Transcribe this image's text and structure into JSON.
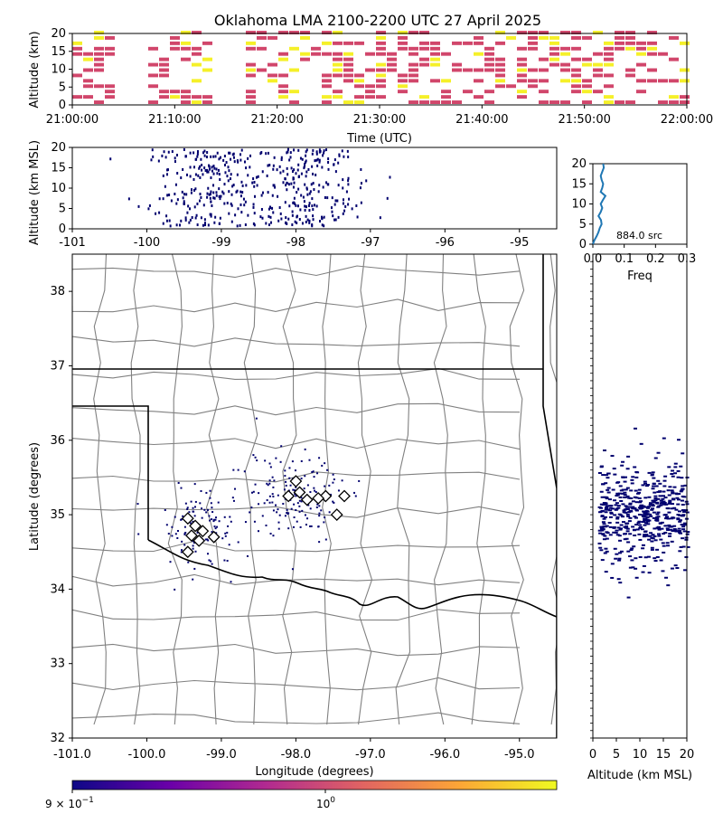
{
  "title": "Oklahoma LMA 2100-2200 UTC 27 April 2025",
  "colors": {
    "magenta": "#d1466b",
    "yellow": "#f5f029",
    "navy": "#00006e",
    "line": "#1f77b4",
    "county": "#808080",
    "border": "#000000",
    "colorbar_stops": [
      "#0d0887",
      "#6a00a8",
      "#b12a90",
      "#e16462",
      "#fca636",
      "#f0f921"
    ]
  },
  "chart_data": [
    {
      "id": "time_height",
      "type": "heatmap",
      "ylabel": "Altitude (km)",
      "xlabel": "Time (UTC)",
      "ylim": [
        0,
        20
      ],
      "yticks": [
        "0",
        "5",
        "10",
        "15",
        "20"
      ],
      "xticks": [
        "21:00:00",
        "21:10:00",
        "21:20:00",
        "21:30:00",
        "21:40:00",
        "21:50:00",
        "22:00:00"
      ],
      "xlim_minutes": [
        0,
        60
      ],
      "active_intervals_minutes": [
        [
          0,
          4
        ],
        [
          7,
          13
        ],
        [
          16,
          60
        ]
      ]
    },
    {
      "id": "lon_alt",
      "type": "scatter",
      "ylabel": "Altitude (km MSL)",
      "yticks": [
        "0",
        "5",
        "10",
        "15",
        "20"
      ],
      "xticks": [
        "-101",
        "-100",
        "-99",
        "-98",
        "-97",
        "-96",
        "-95"
      ],
      "xlim": [
        -101,
        -94.5
      ],
      "ylim": [
        0,
        20
      ],
      "clusters": [
        {
          "lon": -99.2,
          "lon_spread": 0.35,
          "count": 220
        },
        {
          "lon": -97.9,
          "lon_spread": 0.4,
          "count": 240
        }
      ],
      "outliers": [
        [
          -99.75,
          3.5
        ],
        [
          -100.5,
          17.5
        ],
        [
          -99.85,
          17
        ],
        [
          -97.2,
          6
        ],
        [
          -96.75,
          13
        ]
      ]
    },
    {
      "id": "alt_histogram",
      "type": "line",
      "xlabel": "Freq",
      "xticks": [
        "0.0",
        "0.1",
        "0.2",
        "0.3"
      ],
      "yticks": [
        "0",
        "5",
        "10",
        "15",
        "20"
      ],
      "xlim": [
        0,
        0.3
      ],
      "ylim": [
        0,
        20
      ],
      "annotation": "884.0 src",
      "points": [
        [
          0.0,
          0
        ],
        [
          0.005,
          1
        ],
        [
          0.012,
          2
        ],
        [
          0.018,
          3
        ],
        [
          0.022,
          4
        ],
        [
          0.028,
          5
        ],
        [
          0.026,
          6
        ],
        [
          0.018,
          7
        ],
        [
          0.025,
          8
        ],
        [
          0.03,
          9
        ],
        [
          0.025,
          10
        ],
        [
          0.032,
          11
        ],
        [
          0.04,
          12
        ],
        [
          0.025,
          13
        ],
        [
          0.03,
          14
        ],
        [
          0.033,
          15
        ],
        [
          0.028,
          16
        ],
        [
          0.025,
          17
        ],
        [
          0.03,
          18
        ],
        [
          0.035,
          19
        ],
        [
          0.033,
          20
        ]
      ]
    },
    {
      "id": "plan_view",
      "type": "scatter",
      "xlabel": "Longitude (degrees)",
      "ylabel": "Latitude (degrees)",
      "xticks": [
        "-101.0",
        "-100.0",
        "-99.0",
        "-98.0",
        "-97.0",
        "-96.0",
        "-95.0"
      ],
      "yticks": [
        "32",
        "33",
        "34",
        "35",
        "36",
        "37",
        "38"
      ],
      "xlim": [
        -101,
        -94.5
      ],
      "ylim": [
        32,
        38.5
      ],
      "clusters": [
        {
          "lon": -99.3,
          "lat": 34.85,
          "lon_spread": 0.3,
          "lat_spread": 0.25,
          "count": 110
        },
        {
          "lon": -98.0,
          "lat": 35.25,
          "lon_spread": 0.35,
          "lat_spread": 0.3,
          "count": 160
        }
      ],
      "stations": [
        [
          -99.45,
          34.95
        ],
        [
          -99.35,
          34.85
        ],
        [
          -99.25,
          34.78
        ],
        [
          -99.4,
          34.72
        ],
        [
          -99.3,
          34.65
        ],
        [
          -99.1,
          34.7
        ],
        [
          -99.45,
          34.5
        ],
        [
          -98.0,
          35.45
        ],
        [
          -98.1,
          35.25
        ],
        [
          -97.95,
          35.3
        ],
        [
          -97.85,
          35.2
        ],
        [
          -97.6,
          35.25
        ],
        [
          -97.7,
          35.22
        ],
        [
          -97.45,
          35.0
        ],
        [
          -97.35,
          35.25
        ]
      ]
    },
    {
      "id": "alt_lat",
      "type": "scatter",
      "xlabel": "Altitude (km MSL)",
      "xticks": [
        "0",
        "5",
        "10",
        "15",
        "20"
      ],
      "xlim": [
        0,
        20
      ],
      "ylim": [
        32,
        38.5
      ],
      "lat_center": 35.0,
      "lat_spread": 0.35
    },
    {
      "id": "colorbar",
      "type": "colorbar",
      "labels": {
        "min": "9 × 10",
        "min_exp": "−1",
        "mid": "10",
        "mid_exp": "0"
      }
    }
  ]
}
